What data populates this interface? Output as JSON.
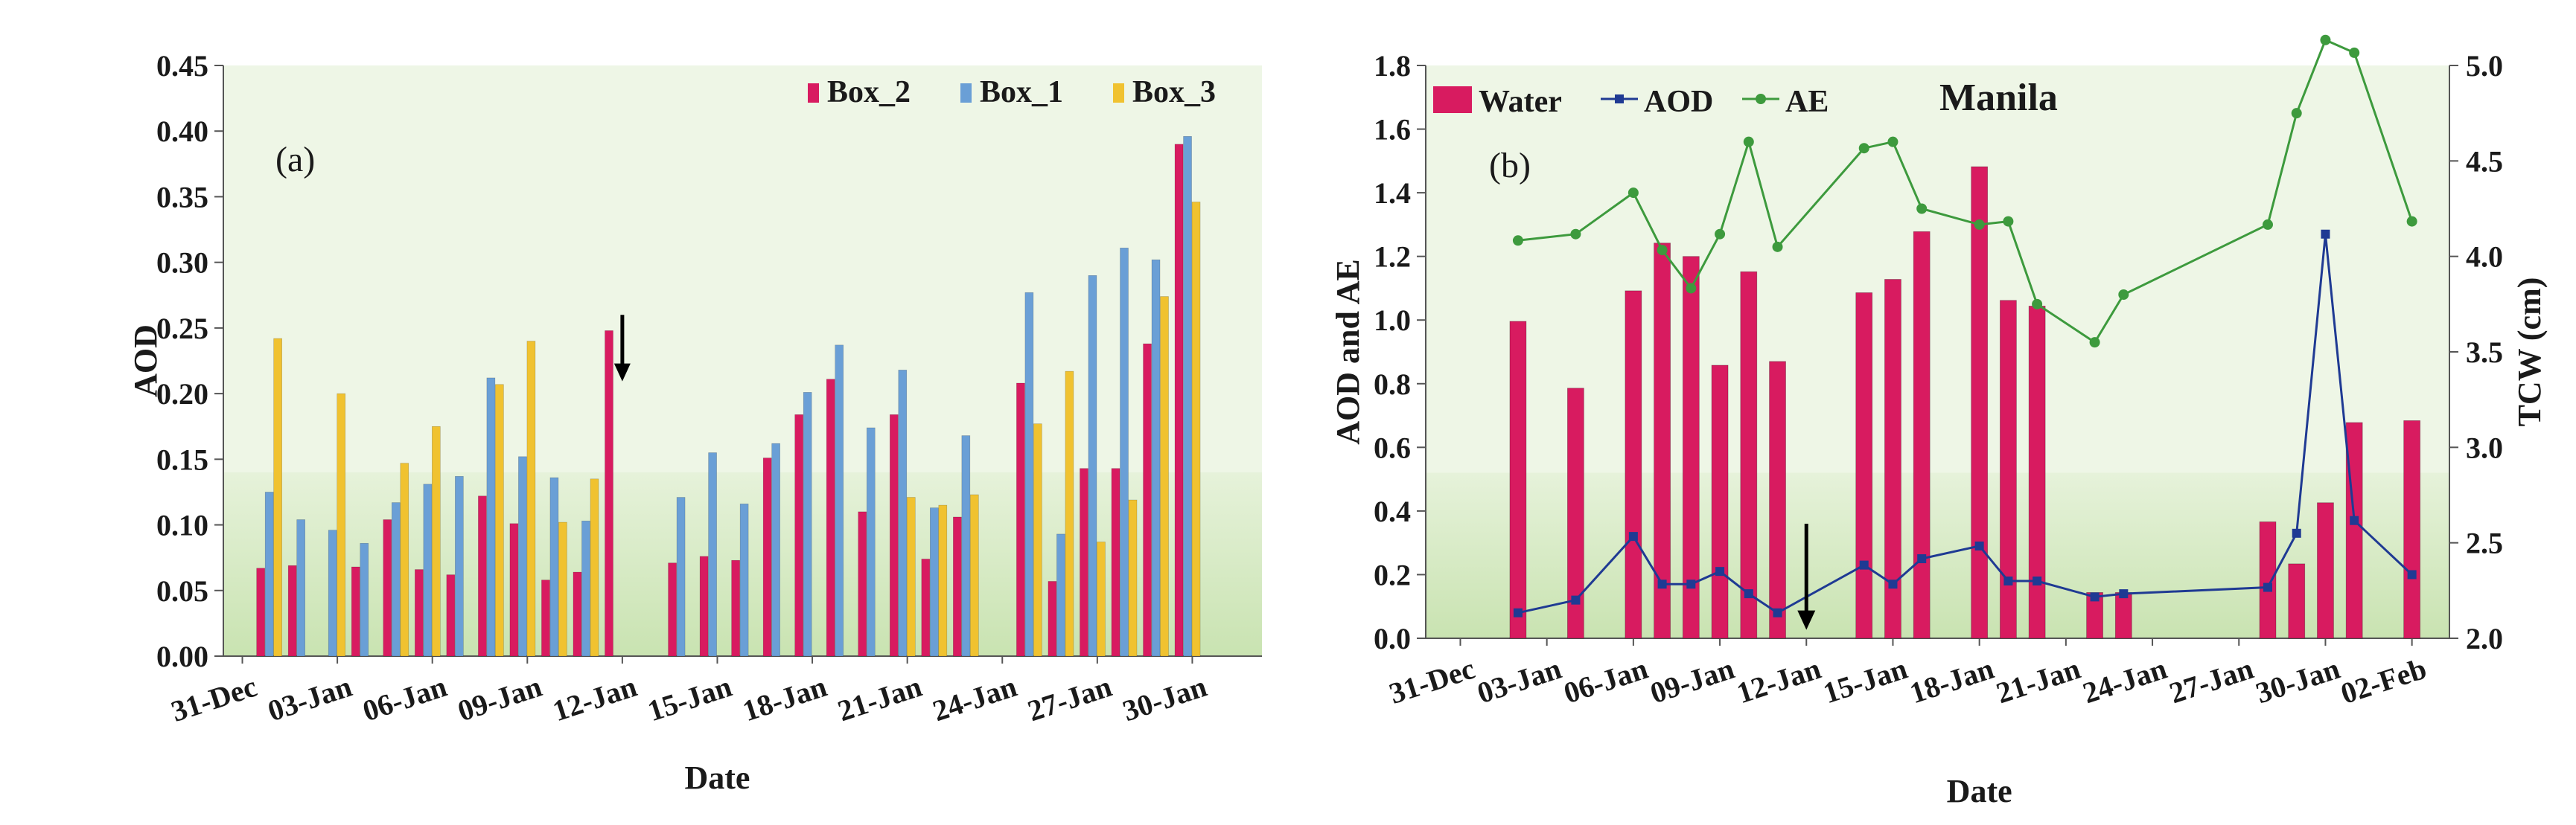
{
  "colors": {
    "box2": "#d81b60",
    "box1": "#6a9fd6",
    "box3": "#f0c230",
    "water": "#d81b60",
    "aod_line": "#1f3a93",
    "ae_line": "#3d9a3d",
    "band_top": "#eef6e6",
    "band_low": "#cfe6b8"
  },
  "chart_data": [
    {
      "type": "bar",
      "panel_label": "(a)",
      "xlabel": "Date",
      "ylabel": "AOD",
      "ylim": [
        0,
        0.45
      ],
      "yticks": [
        "0.00",
        "0.05",
        "0.10",
        "0.15",
        "0.20",
        "0.25",
        "0.30",
        "0.35",
        "0.40",
        "0.45"
      ],
      "ytick_values": [
        0,
        0.05,
        0.1,
        0.15,
        0.2,
        0.25,
        0.3,
        0.35,
        0.4,
        0.45
      ],
      "xticks": [
        "31-Dec",
        "03-Jan",
        "06-Jan",
        "09-Jan",
        "12-Jan",
        "15-Jan",
        "18-Jan",
        "21-Jan",
        "24-Jan",
        "27-Jan",
        "30-Jan"
      ],
      "xtick_days": [
        0,
        3,
        6,
        9,
        12,
        15,
        18,
        21,
        24,
        27,
        30
      ],
      "day_range": [
        -0.6,
        32.2
      ],
      "legend": [
        "Box_2",
        "Box_1",
        "Box_3"
      ],
      "annotation": {
        "type": "arrow-down",
        "day": 12,
        "from": 0.26,
        "to": 0.215
      },
      "days": [
        0.85,
        1.85,
        2.85,
        3.85,
        4.85,
        5.85,
        6.85,
        7.85,
        8.85,
        9.85,
        10.85,
        11.85,
        13.85,
        14.85,
        15.85,
        16.85,
        17.85,
        18.85,
        19.85,
        20.85,
        21.85,
        22.85,
        24.85,
        25.85,
        26.85,
        27.85,
        28.85,
        29.85
      ],
      "series": [
        {
          "name": "Box_2",
          "values": [
            0.067,
            0.069,
            null,
            0.068,
            0.104,
            0.066,
            0.062,
            0.122,
            0.101,
            0.058,
            0.064,
            0.248,
            0.071,
            0.076,
            0.073,
            0.151,
            0.184,
            0.211,
            0.11,
            0.184,
            0.074,
            0.106,
            0.208,
            0.057,
            0.143,
            0.143,
            0.238,
            0.39
          ]
        },
        {
          "name": "Box_1",
          "values": [
            0.125,
            0.104,
            0.096,
            0.086,
            0.117,
            0.131,
            0.137,
            0.212,
            0.152,
            0.136,
            0.103,
            null,
            0.121,
            0.155,
            0.116,
            0.162,
            0.201,
            0.237,
            0.174,
            0.218,
            0.113,
            0.168,
            0.277,
            0.093,
            0.29,
            0.311,
            0.302,
            0.396
          ]
        },
        {
          "name": "Box_3",
          "values": [
            0.242,
            null,
            0.2,
            null,
            0.147,
            0.175,
            null,
            0.207,
            0.24,
            0.102,
            0.135,
            null,
            null,
            null,
            null,
            null,
            null,
            null,
            null,
            0.121,
            0.115,
            0.123,
            0.177,
            0.217,
            0.087,
            0.119,
            0.274,
            0.346
          ]
        }
      ]
    },
    {
      "type": "bar+line",
      "panel_label": "(b)",
      "title": "Manila",
      "xlabel": "Date",
      "ylabel": "AOD and AE",
      "y2label": "TCW (cm)",
      "ylim": [
        0,
        1.8
      ],
      "y2lim": [
        2.0,
        5.0
      ],
      "yticks": [
        "0.0",
        "0.2",
        "0.4",
        "0.6",
        "0.8",
        "1.0",
        "1.2",
        "1.4",
        "1.6",
        "1.8"
      ],
      "ytick_values": [
        0,
        0.2,
        0.4,
        0.6,
        0.8,
        1.0,
        1.2,
        1.4,
        1.6,
        1.8
      ],
      "y2ticks": [
        "2.0",
        "2.5",
        "3.0",
        "3.5",
        "4.0",
        "4.5",
        "5.0"
      ],
      "y2tick_values": [
        2.0,
        2.5,
        3.0,
        3.5,
        4.0,
        4.5,
        5.0
      ],
      "xticks": [
        "31-Dec",
        "03-Jan",
        "06-Jan",
        "09-Jan",
        "12-Jan",
        "15-Jan",
        "18-Jan",
        "21-Jan",
        "24-Jan",
        "27-Jan",
        "30-Jan",
        "02-Feb"
      ],
      "xtick_days": [
        0,
        3,
        6,
        9,
        12,
        15,
        18,
        21,
        24,
        27,
        30,
        33
      ],
      "day_range": [
        -1.2,
        34.3
      ],
      "legend": [
        "Water",
        "AOD",
        "AE"
      ],
      "annotation": {
        "type": "arrow-down",
        "day": 12,
        "from": 0.36,
        "to": 0.05
      },
      "days": [
        2,
        4,
        6,
        7,
        8,
        9,
        10,
        11,
        14,
        15,
        16,
        18,
        19,
        20,
        22,
        23,
        28,
        29,
        30,
        31,
        33
      ],
      "series": [
        {
          "name": "Water",
          "axis": "y2",
          "values": [
            3.66,
            3.31,
            3.82,
            4.07,
            4.0,
            3.43,
            3.92,
            3.45,
            3.81,
            3.88,
            4.13,
            4.47,
            3.77,
            3.74,
            2.24,
            2.24,
            2.61,
            2.39,
            2.71,
            3.13,
            3.14
          ]
        },
        {
          "name": "AOD",
          "axis": "y",
          "values": [
            0.08,
            0.12,
            0.32,
            0.17,
            0.17,
            0.21,
            0.14,
            0.08,
            0.23,
            0.17,
            0.25,
            0.29,
            0.18,
            0.18,
            0.13,
            0.14,
            0.16,
            0.33,
            1.27,
            0.37,
            0.2
          ]
        },
        {
          "name": "AE",
          "axis": "y",
          "values": [
            1.25,
            1.27,
            1.4,
            1.22,
            1.1,
            1.27,
            1.56,
            1.23,
            1.54,
            1.56,
            1.35,
            1.3,
            1.31,
            1.05,
            0.93,
            1.08,
            1.3,
            1.65,
            1.88,
            1.84,
            1.31
          ]
        }
      ]
    }
  ]
}
